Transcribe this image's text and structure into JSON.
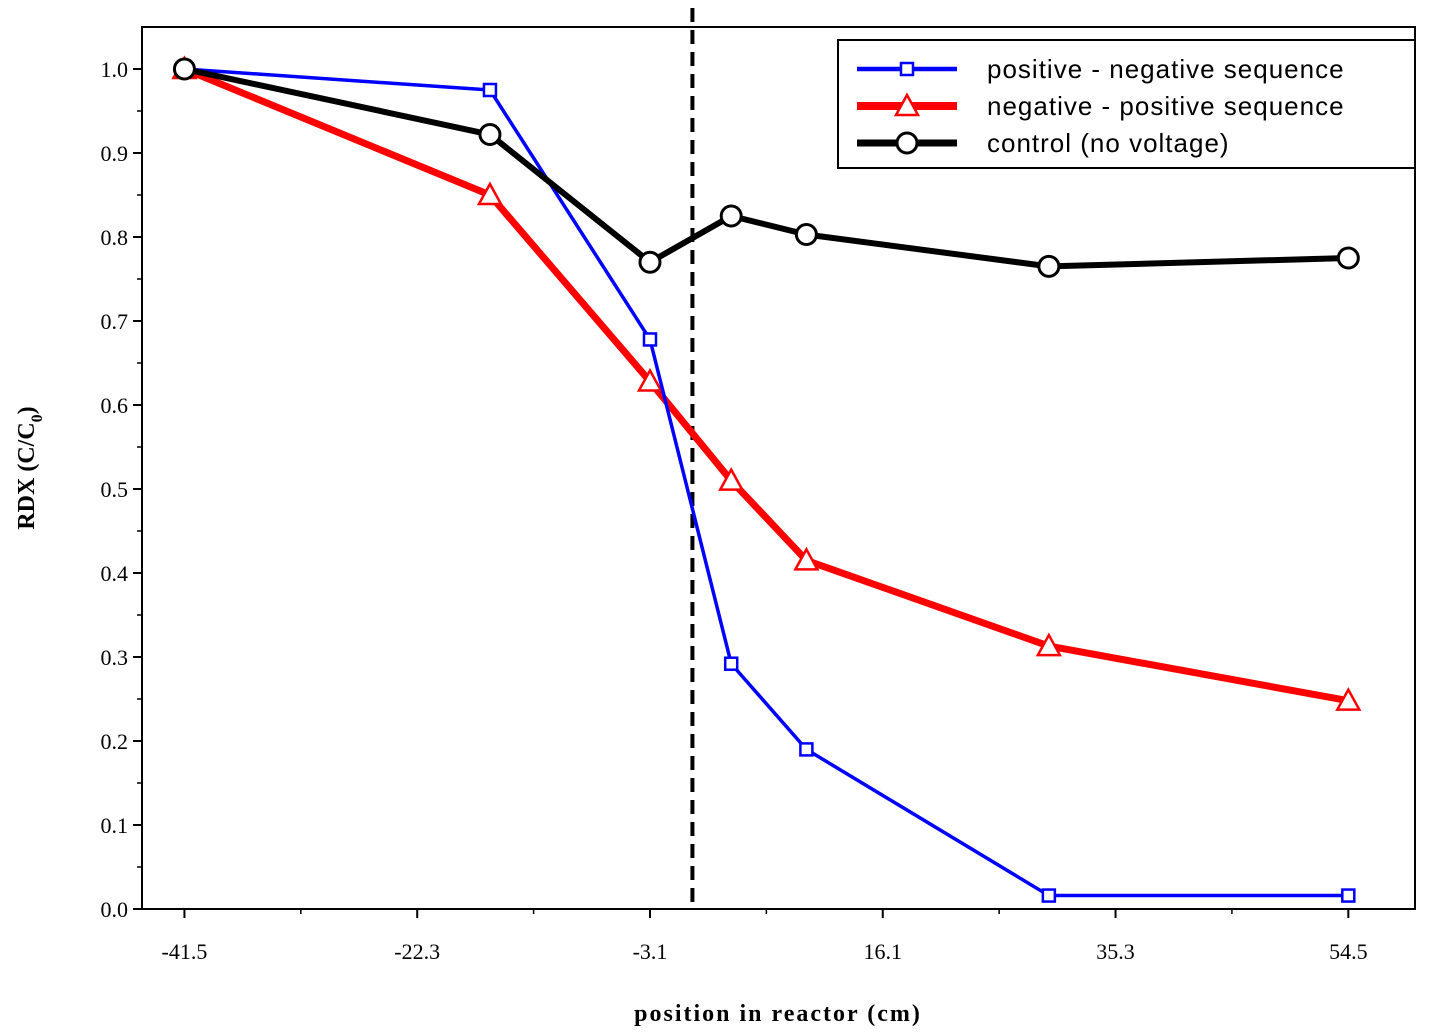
{
  "chart_data": {
    "type": "line",
    "xlabel": "position in reactor (cm)",
    "ylabel_main": "RDX (C/C",
    "ylabel_sub": "0",
    "ylabel_close": ")",
    "xlim": [
      -45,
      60
    ],
    "ylim": [
      0.0,
      1.05
    ],
    "x_ticks": [
      -41.5,
      -22.3,
      -3.1,
      16.1,
      35.3,
      54.5
    ],
    "x_tick_labels": [
      "-41.5",
      "-22.3",
      "-3.1",
      "16.1",
      "35.3",
      "54.5"
    ],
    "y_ticks": [
      0.0,
      0.1,
      0.2,
      0.3,
      0.4,
      0.5,
      0.6,
      0.7,
      0.8,
      0.9,
      1.0
    ],
    "y_tick_labels": [
      "0.0",
      "0.1",
      "0.2",
      "0.3",
      "0.4",
      "0.5",
      "0.6",
      "0.7",
      "0.8",
      "0.9",
      "1.0"
    ],
    "reference_line": {
      "style": "dashed",
      "x": 0.4,
      "color": "#000000"
    },
    "legend_position": "top-right",
    "grid": false,
    "series": [
      {
        "name": "positive - negative sequence",
        "color": "#0000ff",
        "marker": "square",
        "x": [
          -41.5,
          -16.3,
          -3.1,
          3.6,
          9.8,
          29.8,
          54.5
        ],
        "y": [
          1.0,
          0.975,
          0.678,
          0.292,
          0.19,
          0.016,
          0.016
        ]
      },
      {
        "name": "negative - positive sequence",
        "color": "#ff0000",
        "marker": "triangle",
        "x": [
          -41.5,
          -16.3,
          -3.1,
          3.6,
          9.8,
          29.8,
          54.5
        ],
        "y": [
          1.0,
          0.85,
          0.628,
          0.51,
          0.415,
          0.313,
          0.248
        ]
      },
      {
        "name": "control (no voltage)",
        "color": "#000000",
        "marker": "circle",
        "x": [
          -41.5,
          -16.3,
          -3.1,
          3.6,
          9.8,
          29.8,
          54.5
        ],
        "y": [
          1.0,
          0.922,
          0.77,
          0.825,
          0.803,
          0.765,
          0.775
        ]
      }
    ]
  }
}
